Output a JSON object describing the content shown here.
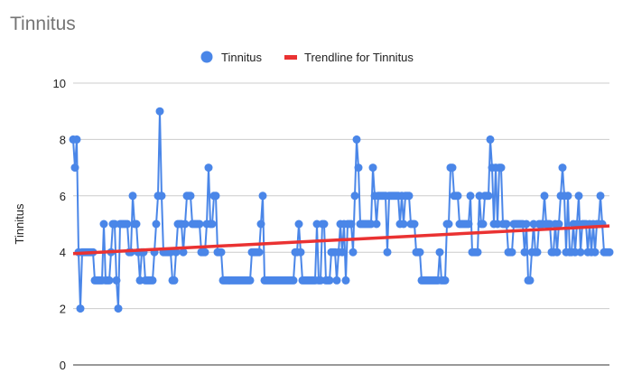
{
  "chart_data": {
    "type": "line",
    "title": "Tinnitus",
    "xlabel": "",
    "ylabel": "Tinnitus",
    "ylim": [
      0,
      10
    ],
    "yticks": [
      0,
      2,
      4,
      6,
      8,
      10
    ],
    "grid": true,
    "legend_position": "top",
    "legend": [
      "Tinnitus",
      "Trendline for Tinnitus"
    ],
    "series": [
      {
        "name": "Tinnitus",
        "color": "#4a86e8",
        "values": [
          8,
          7,
          8,
          4,
          2,
          4,
          4,
          4,
          4,
          4,
          4,
          4,
          3,
          3,
          3,
          3,
          3,
          5,
          3,
          3,
          3,
          4,
          5,
          5,
          3,
          2,
          5,
          5,
          5,
          5,
          5,
          4,
          4,
          6,
          5,
          5,
          4,
          3,
          4,
          4,
          3,
          3,
          3,
          3,
          3,
          4,
          5,
          6,
          9,
          6,
          4,
          4,
          4,
          4,
          4,
          3,
          3,
          4,
          5,
          5,
          5,
          4,
          5,
          6,
          6,
          6,
          5,
          5,
          5,
          5,
          5,
          4,
          4,
          4,
          5,
          7,
          5,
          5,
          6,
          6,
          4,
          4,
          4,
          3,
          3,
          3,
          3,
          3,
          3,
          3,
          3,
          3,
          3,
          3,
          3,
          3,
          3,
          3,
          3,
          4,
          4,
          4,
          4,
          4,
          5,
          6,
          3,
          3,
          3,
          3,
          3,
          3,
          3,
          3,
          3,
          3,
          3,
          3,
          3,
          3,
          3,
          3,
          3,
          4,
          4,
          5,
          4,
          3,
          3,
          3,
          3,
          3,
          3,
          3,
          3,
          5,
          3,
          3,
          5,
          5,
          3,
          3,
          3,
          4,
          4,
          4,
          3,
          4,
          5,
          4,
          5,
          3,
          5,
          5,
          5,
          4,
          6,
          8,
          7,
          5,
          5,
          5,
          5,
          5,
          5,
          5,
          7,
          6,
          5,
          6,
          6,
          6,
          6,
          6,
          4,
          6,
          6,
          6,
          6,
          6,
          6,
          5,
          6,
          5,
          6,
          6,
          6,
          5,
          5,
          5,
          4,
          4,
          4,
          3,
          3,
          3,
          3,
          3,
          3,
          3,
          3,
          3,
          3,
          4,
          3,
          3,
          3,
          5,
          5,
          7,
          7,
          6,
          6,
          6,
          5,
          5,
          5,
          5,
          5,
          5,
          6,
          4,
          4,
          4,
          4,
          6,
          5,
          5,
          6,
          6,
          6,
          8,
          7,
          5,
          7,
          5,
          7,
          7,
          5,
          5,
          5,
          4,
          4,
          4,
          5,
          5,
          5,
          5,
          5,
          5,
          4,
          5,
          3,
          3,
          4,
          5,
          4,
          4,
          5,
          5,
          5,
          6,
          5,
          5,
          5,
          4,
          4,
          5,
          4,
          5,
          6,
          7,
          6,
          4,
          6,
          4,
          4,
          5,
          4,
          5,
          6,
          4,
          5,
          5,
          5,
          4,
          5,
          4,
          5,
          4,
          5,
          5,
          6,
          5,
          4,
          4,
          4,
          4
        ]
      },
      {
        "name": "Trendline for Tinnitus",
        "color": "#ea3232",
        "trend": [
          3.95,
          4.93
        ]
      }
    ]
  }
}
